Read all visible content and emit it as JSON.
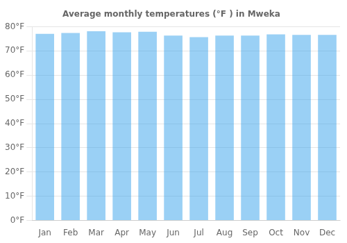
{
  "chart_data": {
    "type": "bar",
    "title": "Average monthly temperatures (°F ) in Mweka",
    "categories": [
      "Jan",
      "Feb",
      "Mar",
      "Apr",
      "May",
      "Jun",
      "Jul",
      "Aug",
      "Sep",
      "Oct",
      "Nov",
      "Dec"
    ],
    "values": [
      77.0,
      77.4,
      78.1,
      77.7,
      77.9,
      76.3,
      75.7,
      76.3,
      76.3,
      76.8,
      76.6,
      76.6
    ],
    "ylim": [
      0,
      80
    ],
    "yticks": [
      {
        "value": 0,
        "label": "0°F"
      },
      {
        "value": 10,
        "label": "10°F"
      },
      {
        "value": 20,
        "label": "20°F"
      },
      {
        "value": 30,
        "label": "30°F"
      },
      {
        "value": 40,
        "label": "40°F"
      },
      {
        "value": 50,
        "label": "50°F"
      },
      {
        "value": 60,
        "label": "60°F"
      },
      {
        "value": 70,
        "label": "70°F"
      },
      {
        "value": 80,
        "label": "80°F"
      }
    ],
    "grid": true
  }
}
